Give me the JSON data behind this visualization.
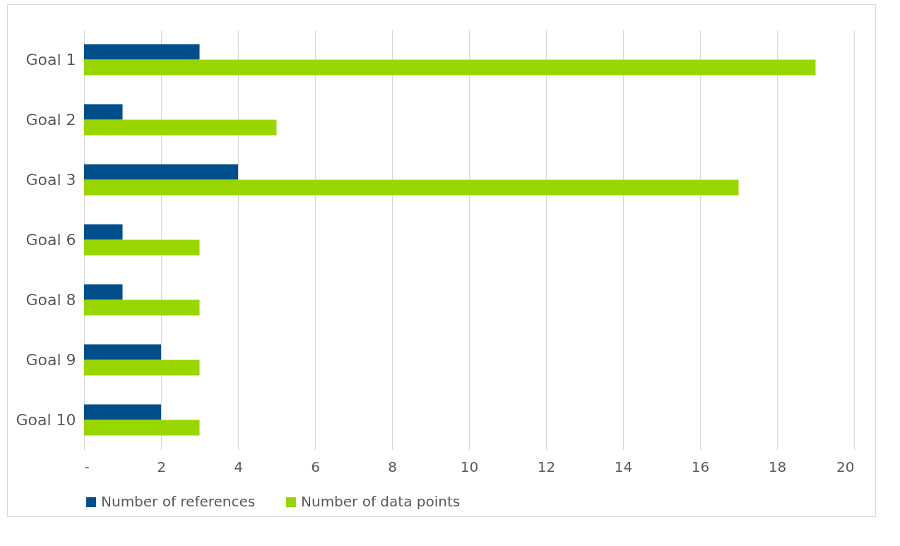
{
  "chart_data": {
    "type": "bar",
    "orientation": "horizontal",
    "categories": [
      "Goal 1",
      "Goal 2",
      "Goal 3",
      "Goal 6",
      "Goal 8",
      "Goal 9",
      "Goal 10"
    ],
    "series": [
      {
        "name": "Number of references",
        "color": "#004f8b",
        "values": [
          3,
          1,
          4,
          1,
          1,
          2,
          2
        ]
      },
      {
        "name": "Number of data points",
        "color": "#99d600",
        "values": [
          19,
          5,
          17,
          3,
          3,
          3,
          3
        ]
      }
    ],
    "xlim": [
      0,
      20
    ],
    "xticks": [
      {
        "value": 0,
        "label": "-"
      },
      2,
      4,
      6,
      8,
      10,
      12,
      14,
      16,
      18,
      20
    ],
    "grid": "x",
    "legend": "bottom"
  }
}
